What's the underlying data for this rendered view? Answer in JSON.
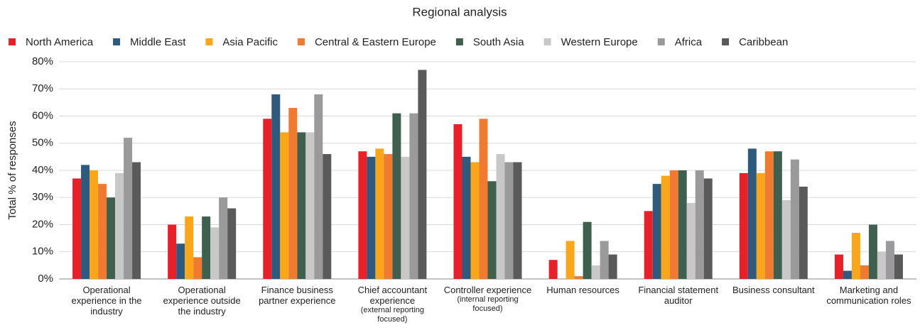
{
  "chart_data": {
    "type": "bar",
    "subtitle": "Regional analysis",
    "y_label": "Total % of responses",
    "categories": [
      "Operational experience in the industry",
      "Operational experience outside the industry",
      "Finance business partner experience",
      "Chief accountant experience",
      "Controller experience",
      "Human resources",
      "Financial statement auditor",
      "Business consultant",
      "Marketing and communication roles"
    ],
    "category_notes": [
      null,
      null,
      null,
      "(external reporting focused)",
      "(internal reporting focused)",
      null,
      null,
      null,
      null
    ],
    "series": [
      {
        "name": "North America",
        "color": "#e8202a",
        "values": [
          37,
          20,
          59,
          47,
          57,
          7,
          25,
          39,
          9
        ]
      },
      {
        "name": "Middle East",
        "color": "#2e5a7e",
        "values": [
          42,
          13,
          68,
          45,
          45,
          0,
          35,
          48,
          3
        ]
      },
      {
        "name": "Asia Pacific",
        "color": "#f9a61a",
        "values": [
          40,
          23,
          54,
          48,
          43,
          14,
          38,
          39,
          17
        ]
      },
      {
        "name": "Central & Eastern Europe",
        "color": "#f07a30",
        "values": [
          35,
          8,
          63,
          46,
          59,
          1,
          40,
          47,
          5
        ]
      },
      {
        "name": "South Asia",
        "color": "#3f5f4f",
        "values": [
          30,
          23,
          54,
          61,
          36,
          21,
          40,
          47,
          20
        ]
      },
      {
        "name": "Western Europe",
        "color": "#c8c8c8",
        "values": [
          39,
          19,
          54,
          45,
          46,
          5,
          28,
          29,
          10
        ]
      },
      {
        "name": "Africa",
        "color": "#9a9a9a",
        "values": [
          52,
          30,
          68,
          61,
          43,
          14,
          40,
          44,
          14
        ]
      },
      {
        "name": "Caribbean",
        "color": "#5a5a5a",
        "values": [
          43,
          26,
          46,
          77,
          43,
          9,
          37,
          34,
          9
        ]
      }
    ],
    "ylim": [
      0,
      80
    ],
    "yticks": [
      {
        "value": 0,
        "label": "0%"
      },
      {
        "value": 10,
        "label": "10%"
      },
      {
        "value": 20,
        "label": "20%"
      },
      {
        "value": 30,
        "label": "30%"
      },
      {
        "value": 40,
        "label": "40%"
      },
      {
        "value": 50,
        "label": "50%"
      },
      {
        "value": 60,
        "label": "60%"
      },
      {
        "value": 70,
        "label": "70%"
      },
      {
        "value": 80,
        "label": "80%"
      }
    ],
    "legend": "top"
  }
}
